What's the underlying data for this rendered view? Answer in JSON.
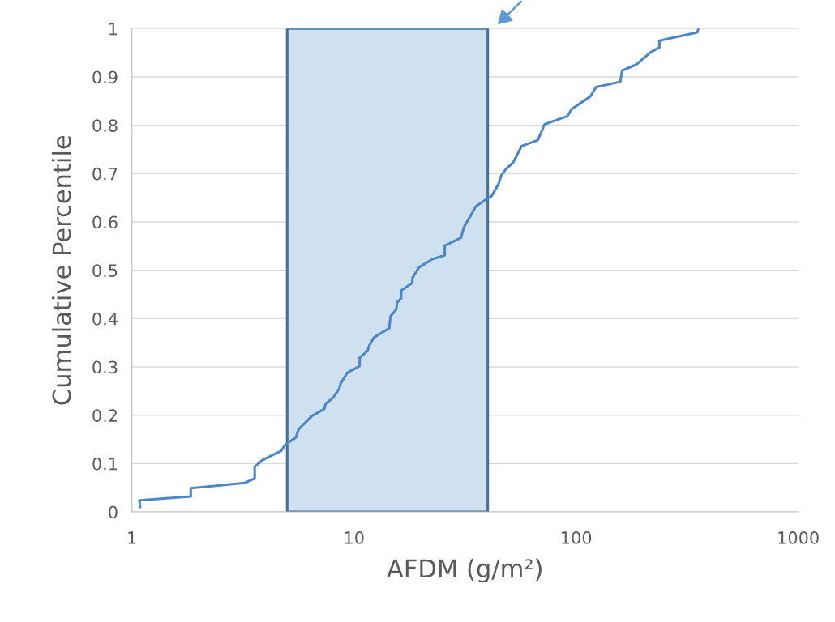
{
  "chart_data": {
    "type": "line",
    "xlabel": "AFDM (g/m²)",
    "ylabel": "Cumulative Percentile",
    "series": [
      {
        "color": "#4a86c8",
        "x": [
          1.09,
          1.08,
          1.84,
          1.84,
          3.22,
          3.57,
          3.57,
          3.86,
          4.69,
          4.9,
          5.47,
          5.63,
          6.48,
          7.35,
          7.45,
          8.0,
          8.58,
          8.7,
          9.33,
          10.6,
          10.6,
          11.5,
          11.7,
          12.3,
          14.4,
          14.6,
          15.5,
          15.6,
          16.3,
          16.3,
          18.3,
          18.3,
          19.6,
          22.5,
          25.6,
          25.6,
          30.3,
          31.3,
          33.4,
          35.3,
          40.6,
          41.7,
          44.8,
          46.0,
          48.0,
          52.2,
          56.8,
          67.2,
          72.1,
          91.4,
          95.3,
          116,
          123,
          158,
          161,
          187,
          215,
          237,
          237,
          351,
          355
        ],
        "values": [
          0.01,
          0.024,
          0.032,
          0.049,
          0.06,
          0.069,
          0.093,
          0.107,
          0.126,
          0.139,
          0.154,
          0.171,
          0.199,
          0.213,
          0.224,
          0.235,
          0.255,
          0.266,
          0.288,
          0.302,
          0.319,
          0.333,
          0.344,
          0.361,
          0.38,
          0.405,
          0.419,
          0.433,
          0.442,
          0.458,
          0.474,
          0.484,
          0.506,
          0.523,
          0.531,
          0.551,
          0.567,
          0.59,
          0.612,
          0.632,
          0.651,
          0.654,
          0.679,
          0.696,
          0.708,
          0.724,
          0.757,
          0.769,
          0.802,
          0.819,
          0.833,
          0.86,
          0.879,
          0.89,
          0.913,
          0.926,
          0.95,
          0.961,
          0.975,
          0.992,
          1.0
        ]
      }
    ],
    "bands": [
      {
        "axis": "x",
        "from": 5,
        "to": 40,
        "color": "#cfe0f1"
      }
    ],
    "log": "x",
    "xlim": [
      1,
      1000
    ],
    "xticks": [
      1,
      10,
      100,
      1000
    ],
    "ylim": [
      0,
      1
    ],
    "yticks": [
      0,
      0.1,
      0.2,
      0.3,
      0.4,
      0.5,
      0.6,
      0.7,
      0.8,
      0.9,
      1
    ],
    "grid": "y",
    "marker": "none",
    "line_style": "solid"
  }
}
